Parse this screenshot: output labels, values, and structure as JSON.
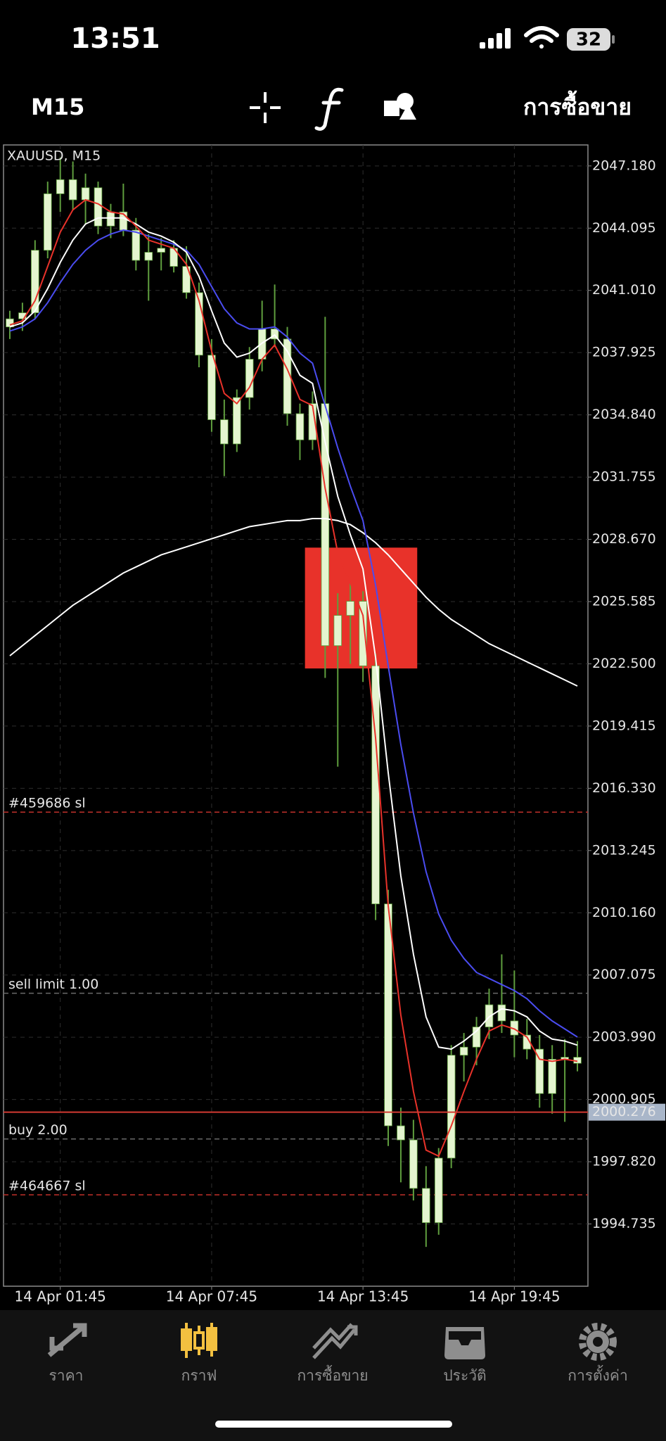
{
  "status_bar": {
    "time": "13:51",
    "battery": "32"
  },
  "toolbar": {
    "timeframe": "M15",
    "trade": "การซื้อขาย"
  },
  "nav": [
    {
      "label": "ราคา",
      "active": false
    },
    {
      "label": "กราฟ",
      "active": true
    },
    {
      "label": "การซื้อขาย",
      "active": false
    },
    {
      "label": "ประวัติ",
      "active": false
    },
    {
      "label": "การตั้งค่า",
      "active": false
    }
  ],
  "nav_colors": {
    "active": "#f3c040",
    "inactive": "#8e8e8e"
  },
  "chart_data": {
    "type": "candlestick",
    "title": "XAUUSD, M15",
    "categories": [
      null,
      null,
      null,
      null,
      "14 Apr 01:45",
      null,
      null,
      null,
      null,
      null,
      null,
      null,
      null,
      null,
      null,
      null,
      "14 Apr 07:45",
      null,
      null,
      null,
      null,
      null,
      null,
      null,
      null,
      null,
      null,
      null,
      "14 Apr 13:45",
      null,
      null,
      null,
      null,
      null,
      null,
      null,
      null,
      null,
      null,
      null,
      "14 Apr 19:45",
      null,
      null,
      null,
      null,
      null
    ],
    "open": [
      2039.2,
      2039.6,
      2039.9,
      2043.0,
      2045.8,
      2046.5,
      2045.5,
      2046.1,
      2044.2,
      2044.9,
      2044.0,
      2042.5,
      2042.9,
      2043.1,
      2042.2,
      2040.9,
      2037.8,
      2034.6,
      2033.4,
      2035.7,
      2037.6,
      2039.1,
      2038.6,
      2034.9,
      2033.6,
      2035.4,
      2023.4,
      2024.9,
      2025.6,
      2022.4,
      2010.6,
      1999.6,
      1998.9,
      1996.5,
      1994.8,
      1998.0,
      2003.1,
      2003.5,
      2004.5,
      2005.6,
      2004.8,
      2004.1,
      2003.4,
      2001.2,
      2002.9,
      2003.0
    ],
    "high": [
      2040.0,
      2040.4,
      2043.5,
      2046.4,
      2047.6,
      2047.4,
      2046.8,
      2046.4,
      2045.3,
      2046.3,
      2044.6,
      2043.8,
      2043.6,
      2043.5,
      2043.2,
      2041.4,
      2038.6,
      2035.6,
      2036.1,
      2038.2,
      2040.5,
      2041.3,
      2039.2,
      2035.4,
      2036.0,
      2039.7,
      2026.0,
      2026.5,
      2026.1,
      2023.0,
      2011.3,
      2000.5,
      1999.9,
      1997.6,
      1998.5,
      2003.6,
      2004.2,
      2005.0,
      2006.4,
      2008.1,
      2007.3,
      2004.9,
      2004.1,
      2003.6,
      2003.9,
      2003.8
    ],
    "low": [
      2038.6,
      2039.0,
      2039.6,
      2042.6,
      2044.9,
      2045.0,
      2044.3,
      2043.8,
      2043.6,
      2043.7,
      2042.0,
      2040.5,
      2042.0,
      2041.9,
      2040.6,
      2037.2,
      2034.0,
      2031.8,
      2033.0,
      2035.1,
      2037.0,
      2038.2,
      2034.3,
      2032.6,
      2033.1,
      2021.8,
      2017.4,
      2022.5,
      2021.6,
      2009.8,
      1998.6,
      1996.8,
      1995.9,
      1993.6,
      1994.2,
      1997.5,
      2001.8,
      2002.6,
      2003.9,
      2004.2,
      2003.0,
      2002.9,
      2000.5,
      2000.2,
      1999.8,
      2002.3
    ],
    "close": [
      2039.6,
      2039.9,
      2043.0,
      2045.8,
      2046.5,
      2045.5,
      2046.1,
      2044.2,
      2044.9,
      2044.0,
      2042.5,
      2042.9,
      2043.1,
      2042.2,
      2040.9,
      2037.8,
      2034.6,
      2033.4,
      2035.7,
      2037.6,
      2039.1,
      2038.6,
      2034.9,
      2033.6,
      2035.4,
      2023.4,
      2024.9,
      2025.6,
      2022.4,
      2010.6,
      1999.6,
      1998.9,
      1996.5,
      1994.8,
      1998.0,
      2003.1,
      2003.5,
      2004.5,
      2005.6,
      2004.8,
      2004.1,
      2003.4,
      2001.2,
      2002.9,
      2003.0,
      2002.7
    ],
    "body_color": "#e4f5cf",
    "wick_color": "#5f9e3e",
    "lines": [
      {
        "color": "#ffffff",
        "values": [
          2022.9,
          2023.4,
          2023.9,
          2024.4,
          2024.9,
          2025.4,
          2025.8,
          2026.2,
          2026.6,
          2027.0,
          2027.3,
          2027.6,
          2027.9,
          2028.1,
          2028.3,
          2028.5,
          2028.7,
          2028.9,
          2029.1,
          2029.3,
          2029.4,
          2029.5,
          2029.6,
          2029.6,
          2029.7,
          2029.7,
          2029.6,
          2029.4,
          2029.0,
          2028.5,
          2027.9,
          2027.2,
          2026.5,
          2025.8,
          2025.2,
          2024.7,
          2024.3,
          2023.9,
          2023.5,
          2023.2,
          2022.9,
          2022.6,
          2022.3,
          2022.0,
          2021.7,
          2021.4
        ]
      },
      {
        "color": "#4a4cf0",
        "values": [
          2039.0,
          2039.2,
          2039.6,
          2040.4,
          2041.4,
          2042.3,
          2043.0,
          2043.5,
          2043.8,
          2044.0,
          2043.9,
          2043.7,
          2043.5,
          2043.3,
          2043.0,
          2042.3,
          2041.2,
          2040.1,
          2039.4,
          2039.1,
          2039.1,
          2039.2,
          2038.7,
          2037.9,
          2037.4,
          2035.3,
          2033.2,
          2031.3,
          2029.6,
          2026.4,
          2022.4,
          2018.5,
          2015.1,
          2012.2,
          2010.1,
          2008.8,
          2007.9,
          2007.2,
          2006.9,
          2006.6,
          2006.3,
          2005.9,
          2005.3,
          2004.8,
          2004.4,
          2004.0
        ]
      },
      {
        "color": "#ffffff",
        "values": [
          2039.2,
          2039.4,
          2040.0,
          2041.1,
          2042.4,
          2043.5,
          2044.3,
          2044.6,
          2044.6,
          2044.6,
          2044.3,
          2043.9,
          2043.7,
          2043.4,
          2042.9,
          2041.7,
          2040.0,
          2038.4,
          2037.7,
          2037.9,
          2038.4,
          2038.8,
          2038.0,
          2036.8,
          2036.4,
          2033.5,
          2030.8,
          2028.9,
          2027.2,
          2022.8,
          2017.1,
          2012.0,
          2008.1,
          2005.0,
          2003.5,
          2003.4,
          2003.8,
          2004.3,
          2005.0,
          2005.4,
          2005.3,
          2005.0,
          2004.3,
          2003.9,
          2003.8,
          2003.6
        ]
      },
      {
        "color": "#e8322a",
        "values": [
          2039.3,
          2039.5,
          2040.5,
          2042.2,
          2043.9,
          2045.0,
          2045.5,
          2045.3,
          2044.9,
          2044.8,
          2044.2,
          2043.5,
          2043.3,
          2043.1,
          2042.3,
          2040.5,
          2038.0,
          2035.9,
          2035.4,
          2036.2,
          2037.6,
          2038.3,
          2037.1,
          2035.6,
          2035.3,
          2031.2,
          2028.0,
          2026.5,
          2024.9,
          2018.8,
          2010.5,
          2005.1,
          2001.3,
          1998.4,
          1998.1,
          1999.6,
          2001.3,
          2002.9,
          2004.3,
          2004.6,
          2004.4,
          2004.0,
          2002.9,
          2002.8,
          2002.9,
          2002.8
        ]
      }
    ],
    "rectangle": {
      "top": 2028.26,
      "bottom": 2022.27,
      "start": 23.9,
      "end": 32.8,
      "color": "#e8322a"
    },
    "levels": [
      {
        "label": "#459686 sl",
        "price": 2015.15,
        "color": "#c0302a"
      },
      {
        "label": "sell limit 1.00",
        "price": 2006.17,
        "color": "#6a6a6a"
      },
      {
        "label": "buy 2.00",
        "price": 1998.95,
        "color": "#6a6a6a"
      },
      {
        "label": "#464667 sl",
        "price": 1996.18,
        "color": "#c0302a"
      }
    ],
    "current_price": {
      "value": 2000.276,
      "color": "#d23a32",
      "box_color": "#a9b6c9"
    },
    "ylim": [
      1991.65,
      2048.22
    ],
    "yticks": [
      {
        "value": 2047.18,
        "label": "2047.180"
      },
      2044.095,
      {
        "value": 2041.01,
        "label": "2041.010"
      },
      2037.925,
      {
        "value": 2034.84,
        "label": "2034.840"
      },
      2031.755,
      {
        "value": 2028.67,
        "label": "2028.670"
      },
      2025.585,
      {
        "value": 2022.5,
        "label": "2022.500"
      },
      2019.415,
      {
        "value": 2016.33,
        "label": "2016.330"
      },
      2013.245,
      {
        "value": 2010.16,
        "label": "2010.160"
      },
      2007.075,
      {
        "value": 2003.99,
        "label": "2003.990"
      },
      2000.905,
      {
        "value": 1997.82,
        "label": "1997.820"
      },
      1994.735
    ],
    "grid": true
  }
}
